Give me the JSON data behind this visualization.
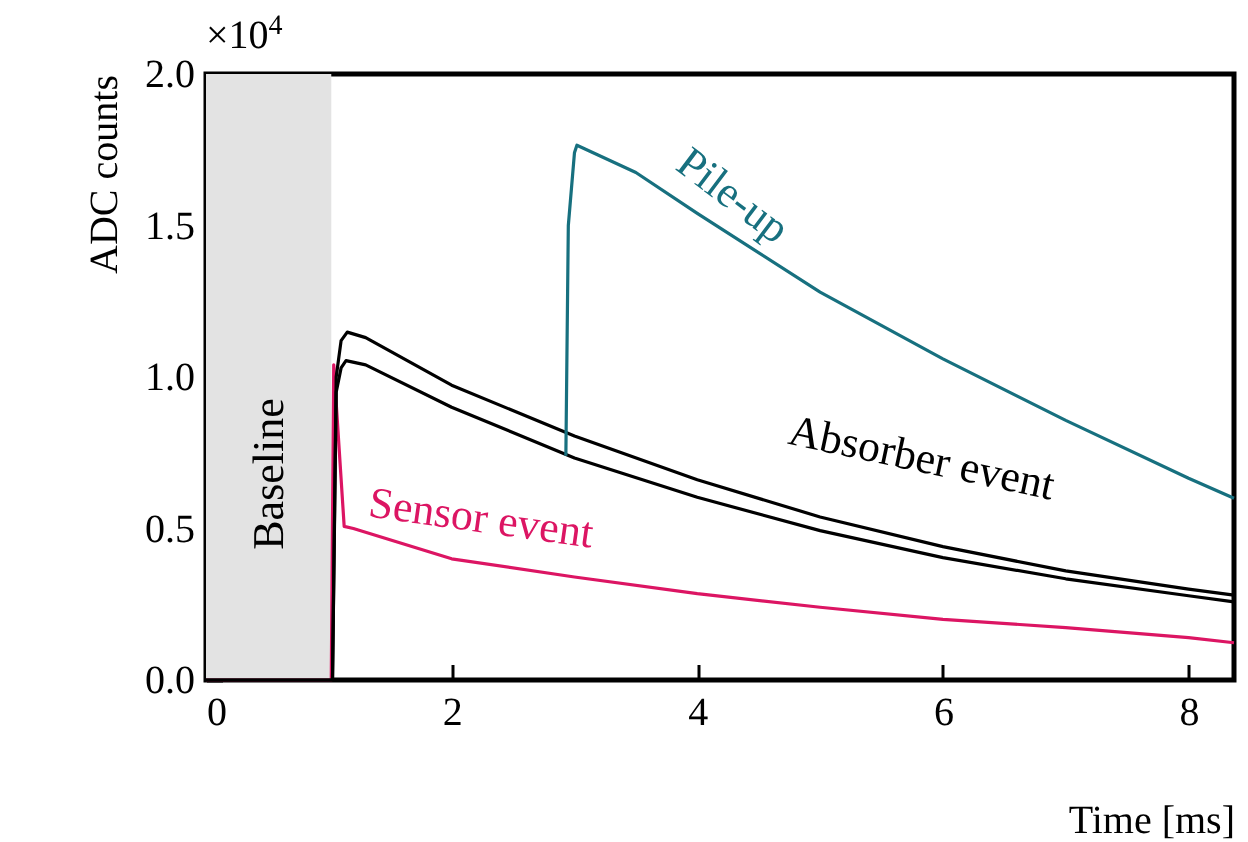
{
  "chart_data": {
    "type": "line",
    "xlabel": "Time [ms]",
    "ylabel": "ADC counts",
    "annotations": [
      "×10$^{4}$"
    ],
    "xlim": [
      0,
      8.37
    ],
    "xticks": [
      0,
      2,
      4,
      6,
      8
    ],
    "ylim": [
      0,
      2.0
    ],
    "yticks": [
      {
        "value": 0,
        "label": "0.0"
      },
      {
        "value": 0.5,
        "label": "0.5"
      },
      {
        "value": 1.0,
        "label": "1.0"
      },
      {
        "value": 1.5,
        "label": "1.5"
      },
      {
        "value": 2.0,
        "label": "2.0"
      }
    ],
    "bands": [
      {
        "axis": "x",
        "from": 0,
        "to": 1.02,
        "label": "Baseline",
        "color": "#e3e3e3"
      }
    ],
    "series": [
      {
        "name": "Sensor event",
        "color": "#dc1563",
        "x": [
          0,
          1.02,
          1.04,
          1.125,
          1.2,
          2,
          3,
          4,
          5,
          6,
          7,
          8,
          8.37
        ],
        "values": [
          0,
          0,
          1.04,
          0.507,
          0.5,
          0.4,
          0.34,
          0.285,
          0.24,
          0.2,
          0.173,
          0.14,
          0.123
        ]
      },
      {
        "name": "Absorber event",
        "color": "#000000",
        "x": [
          0,
          1.03,
          1.06,
          1.1,
          1.15,
          1.3,
          2,
          3,
          4,
          5,
          6,
          7,
          8,
          8.37
        ],
        "values": [
          0,
          0,
          1.0,
          1.12,
          1.148,
          1.13,
          0.973,
          0.805,
          0.661,
          0.538,
          0.44,
          0.36,
          0.3,
          0.28
        ]
      },
      {
        "color": "#000000",
        "x": [
          0,
          1.03,
          1.06,
          1.1,
          1.14,
          1.3,
          2,
          3,
          4,
          5,
          6,
          7,
          8,
          8.37
        ],
        "values": [
          0,
          0,
          0.95,
          1.03,
          1.054,
          1.04,
          0.9,
          0.733,
          0.603,
          0.493,
          0.404,
          0.334,
          0.278,
          0.258
        ]
      },
      {
        "name": "Pile-up",
        "color": "#17707f",
        "x": [
          2.93,
          2.95,
          3.0,
          3.02,
          3.5,
          4,
          5,
          6,
          7,
          8,
          8.37
        ],
        "values": [
          0.74,
          1.5,
          1.74,
          1.765,
          1.675,
          1.54,
          1.28,
          1.06,
          0.857,
          0.666,
          0.6
        ]
      }
    ],
    "grid": false
  }
}
